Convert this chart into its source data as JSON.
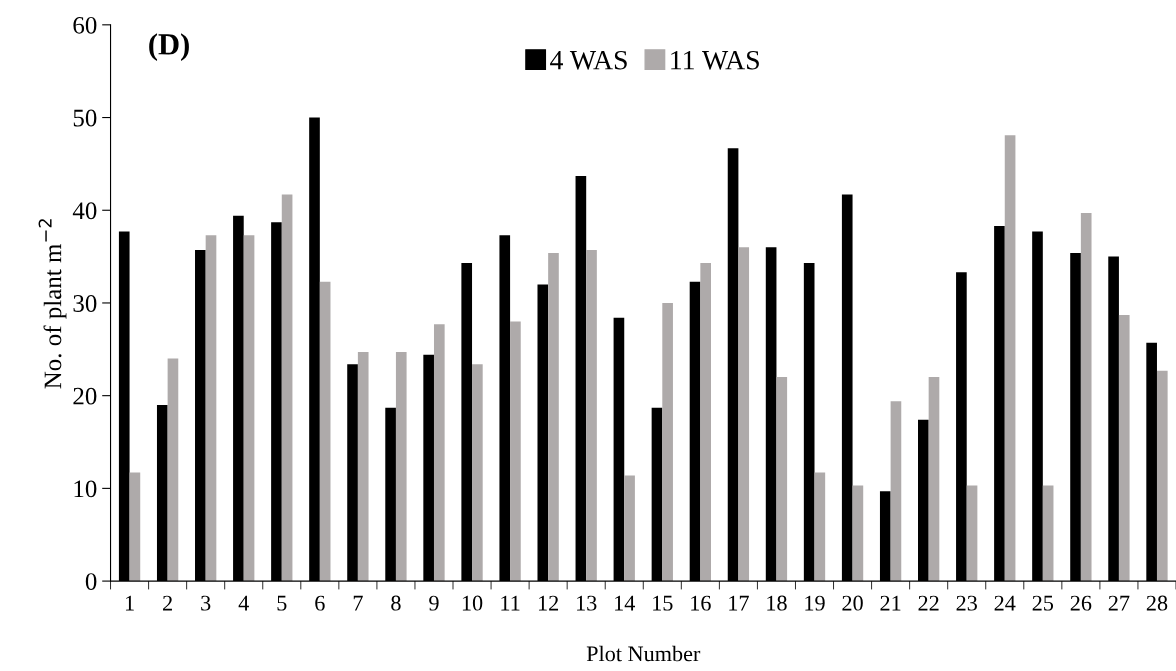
{
  "chart_data": {
    "type": "bar",
    "title": "(D)",
    "xlabel": "Plot Number",
    "ylabel": "No. of plant m$^{−2}$",
    "categories": [
      "1",
      "2",
      "3",
      "4",
      "5",
      "6",
      "7",
      "8",
      "9",
      "10",
      "11",
      "12",
      "13",
      "14",
      "15",
      "16",
      "17",
      "18",
      "19",
      "20",
      "21",
      "22",
      "23",
      "24",
      "25",
      "26",
      "27",
      "28"
    ],
    "series": [
      {
        "name": "4 WAS",
        "color": "#000000",
        "values": [
          37.7,
          19.0,
          35.7,
          39.4,
          38.7,
          50.0,
          23.4,
          18.7,
          24.4,
          34.3,
          37.3,
          32.0,
          43.7,
          28.4,
          18.7,
          32.3,
          46.7,
          36.0,
          34.3,
          41.7,
          9.7,
          17.4,
          33.3,
          38.3,
          37.7,
          35.4,
          35.0,
          25.7
        ]
      },
      {
        "name": "11 WAS",
        "color": "#aeaaaa",
        "values": [
          11.7,
          24.0,
          37.3,
          37.3,
          41.7,
          32.3,
          24.7,
          24.7,
          27.7,
          23.4,
          28.0,
          35.4,
          35.7,
          11.4,
          30.0,
          34.3,
          36.0,
          22.0,
          11.7,
          10.3,
          19.4,
          22.0,
          10.3,
          48.1,
          10.3,
          39.7,
          28.7,
          22.7
        ]
      }
    ],
    "ylim": [
      0,
      60
    ],
    "yticks": [
      0,
      10,
      20,
      30,
      40,
      50,
      60
    ],
    "grid": false,
    "legend": "top"
  }
}
